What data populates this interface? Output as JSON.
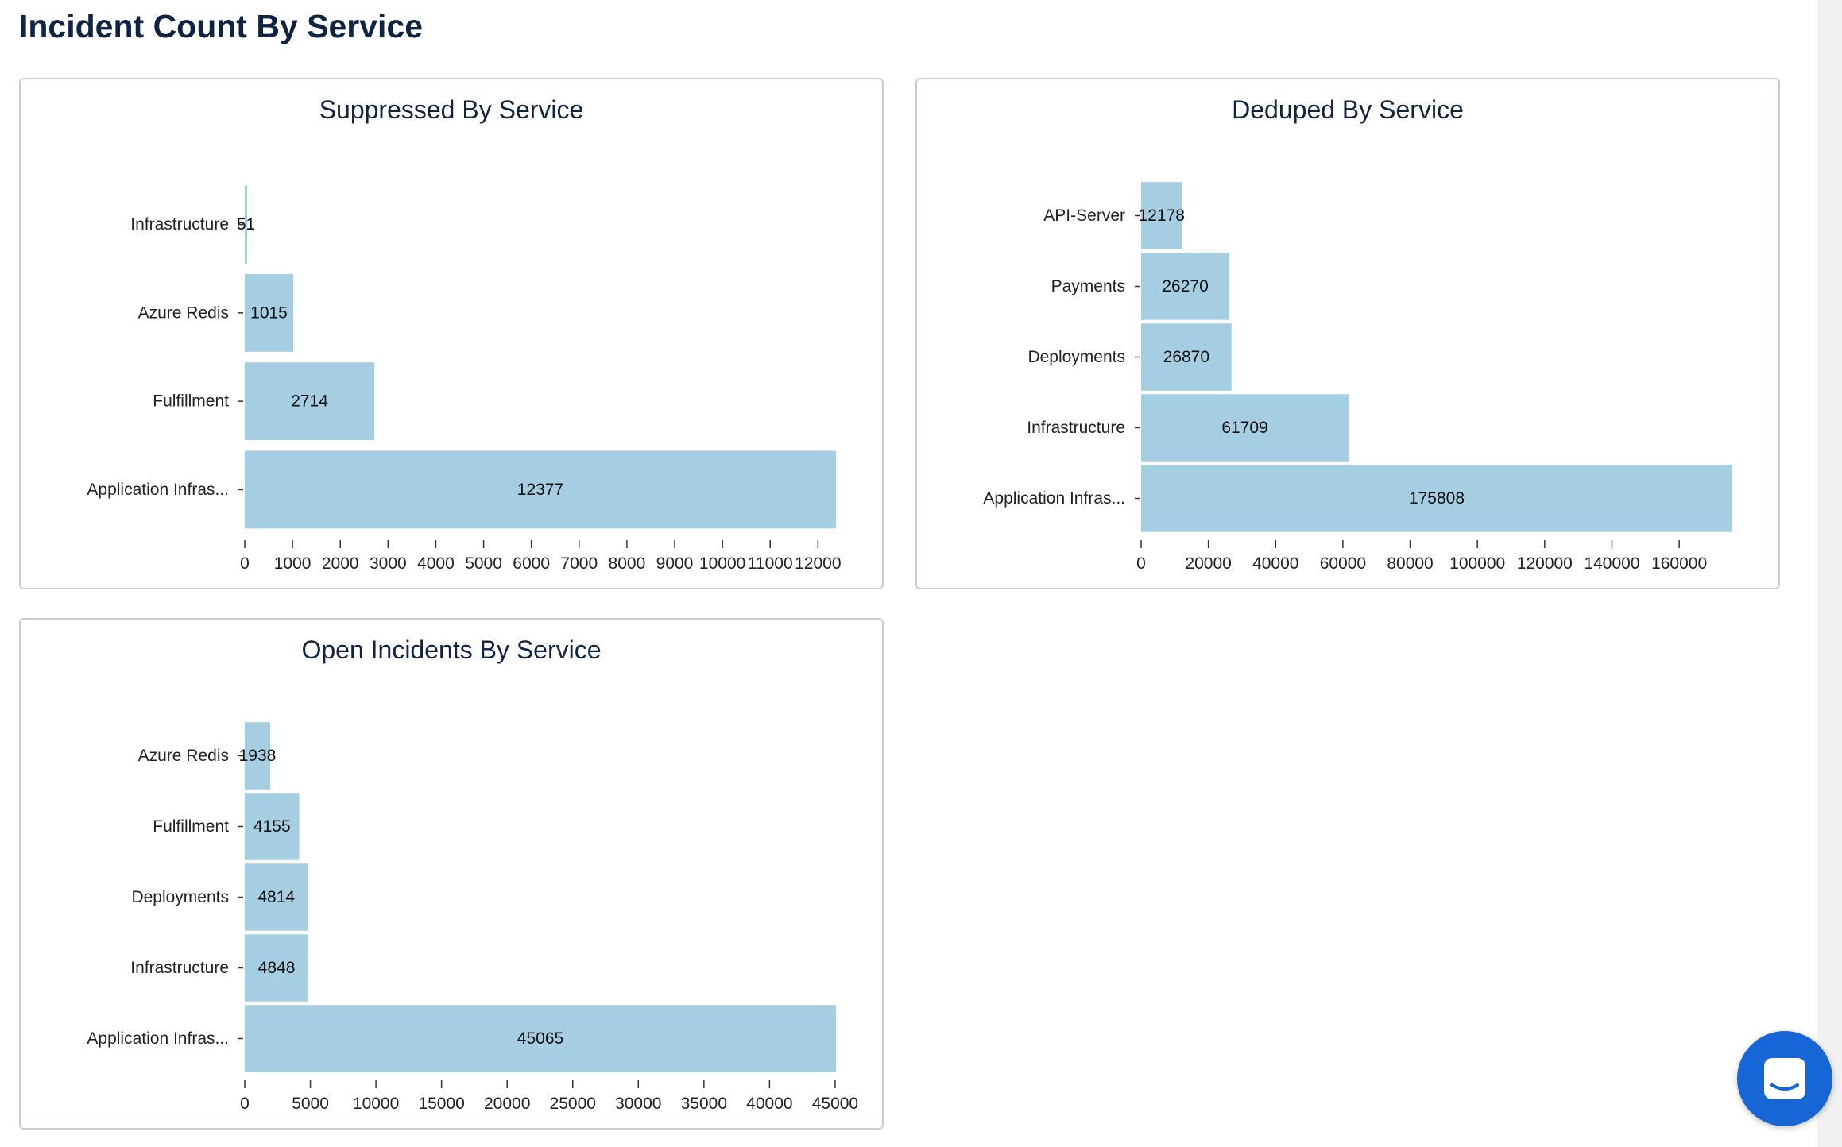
{
  "page": {
    "title": "Incident Count By Service"
  },
  "colors": {
    "bar": "#a6cee3",
    "axis": "#333333",
    "title": "#0f2342",
    "launcher": "#1766d6"
  },
  "chat_launcher": {
    "icon": "chat-bubble-icon"
  },
  "chart_data": [
    {
      "id": "suppressed",
      "type": "bar",
      "orientation": "horizontal",
      "title": "Suppressed By Service",
      "categories": [
        "Infrastructure",
        "Azure Redis",
        "Fulfillment",
        "Application Infras..."
      ],
      "values": [
        51,
        1015,
        2714,
        12377
      ],
      "xlim": [
        0,
        12377
      ],
      "xticks": [
        0,
        1000,
        2000,
        3000,
        4000,
        5000,
        6000,
        7000,
        8000,
        9000,
        10000,
        11000,
        12000
      ],
      "xlabel": "",
      "ylabel": "",
      "grid": false
    },
    {
      "id": "deduped",
      "type": "bar",
      "orientation": "horizontal",
      "title": "Deduped By Service",
      "categories": [
        "API-Server",
        "Payments",
        "Deployments",
        "Infrastructure",
        "Application Infras..."
      ],
      "values": [
        12178,
        26270,
        26870,
        61709,
        175808
      ],
      "xlim": [
        0,
        175808
      ],
      "xticks": [
        0,
        20000,
        40000,
        60000,
        80000,
        100000,
        120000,
        140000,
        160000
      ],
      "xlabel": "",
      "ylabel": "",
      "grid": false
    },
    {
      "id": "open",
      "type": "bar",
      "orientation": "horizontal",
      "title": "Open Incidents By Service",
      "categories": [
        "Azure Redis",
        "Fulfillment",
        "Deployments",
        "Infrastructure",
        "Application Infras..."
      ],
      "values": [
        1938,
        4155,
        4814,
        4848,
        45065
      ],
      "xlim": [
        0,
        45065
      ],
      "xticks": [
        0,
        5000,
        10000,
        15000,
        20000,
        25000,
        30000,
        35000,
        40000,
        45000
      ],
      "xlabel": "",
      "ylabel": "",
      "grid": false
    }
  ]
}
